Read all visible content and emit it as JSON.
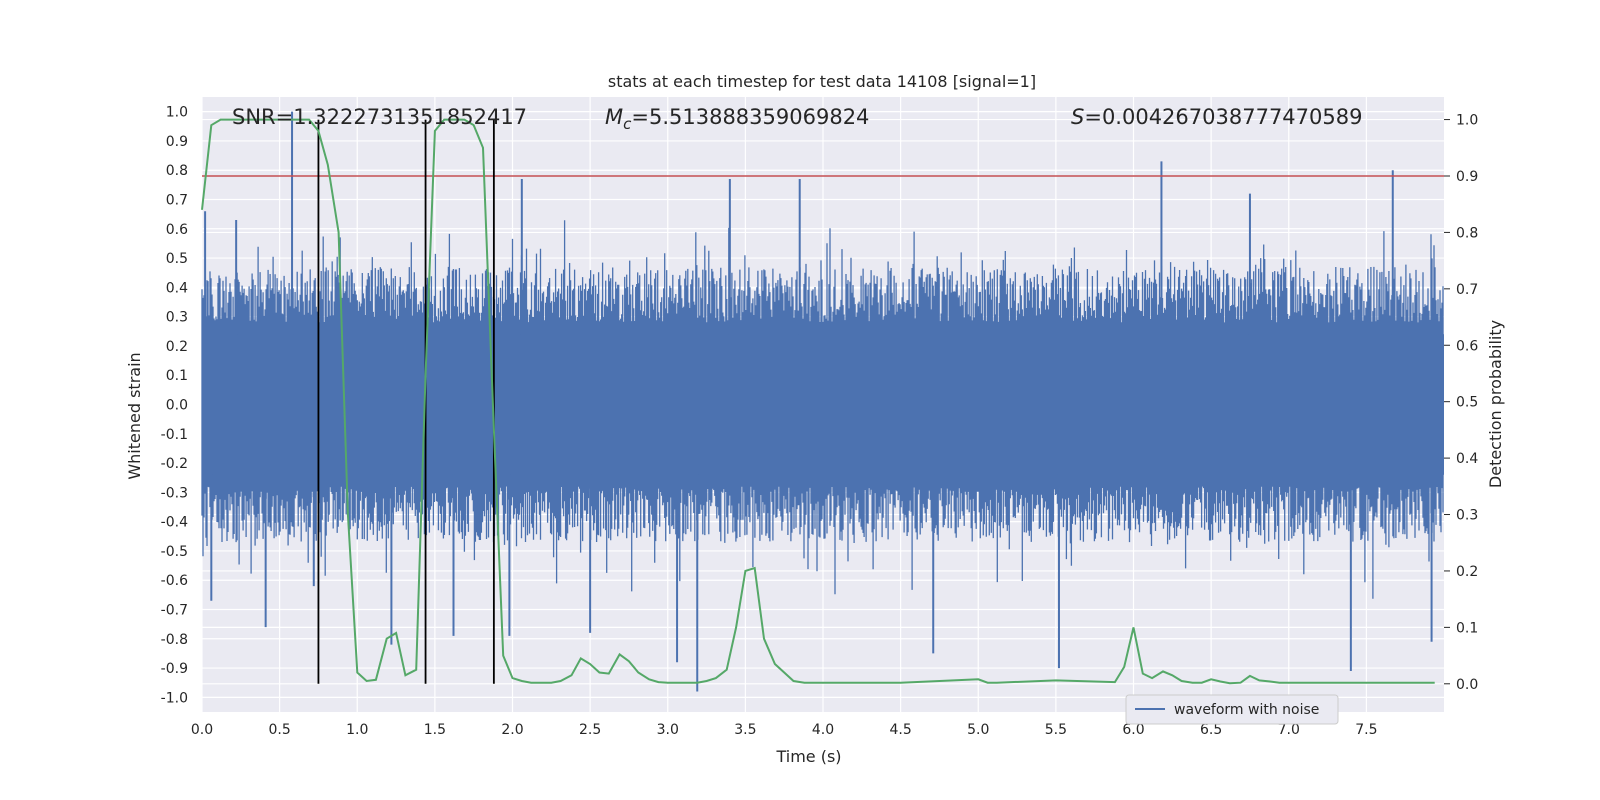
{
  "chart_data": {
    "type": "line",
    "title": "stats at each timestep for test data 14108 [signal=1]",
    "xlabel": "Time (s)",
    "ylabel_left": "Whitened strain",
    "ylabel_right": "Detection probability",
    "xlim": [
      0.0,
      8.0
    ],
    "ylim_left": [
      -1.05,
      1.05
    ],
    "ylim_right": [
      -0.05,
      1.04
    ],
    "grid": true,
    "x_ticks": [
      "0.0",
      "0.5",
      "1.0",
      "1.5",
      "2.0",
      "2.5",
      "3.0",
      "3.5",
      "4.0",
      "4.5",
      "5.0",
      "5.5",
      "6.0",
      "6.5",
      "7.0",
      "7.5"
    ],
    "x_tick_values": [
      0.0,
      0.5,
      1.0,
      1.5,
      2.0,
      2.5,
      3.0,
      3.5,
      4.0,
      4.5,
      5.0,
      5.5,
      6.0,
      6.5,
      7.0,
      7.5
    ],
    "y_left_ticks": [
      "1.0",
      "0.9",
      "0.8",
      "0.7",
      "0.6",
      "0.5",
      "0.4",
      "0.3",
      "0.2",
      "0.1",
      "0.0",
      "-0.1",
      "-0.2",
      "-0.3",
      "-0.4",
      "-0.5",
      "-0.6",
      "-0.7",
      "-0.8",
      "-0.9",
      "-1.0"
    ],
    "y_left_tick_values": [
      1.0,
      0.9,
      0.8,
      0.7,
      0.6,
      0.5,
      0.4,
      0.3,
      0.2,
      0.1,
      0.0,
      -0.1,
      -0.2,
      -0.3,
      -0.4,
      -0.5,
      -0.6,
      -0.7,
      -0.8,
      -0.9,
      -1.0
    ],
    "y_right_ticks": [
      "1.0",
      "0.9",
      "0.8",
      "0.7",
      "0.6",
      "0.5",
      "0.4",
      "0.3",
      "0.2",
      "0.1",
      "0.0"
    ],
    "y_right_tick_values": [
      1.0,
      0.9,
      0.8,
      0.7,
      0.6,
      0.5,
      0.4,
      0.3,
      0.2,
      0.1,
      0.0
    ],
    "annotations": {
      "snr": "SNR=1.3222731351852417",
      "mc_symbol": "M",
      "mc_sub": "c",
      "mc_value": "=5.513888359069824",
      "s_symbol": "S",
      "s_value": "=0.004267038777470589"
    },
    "threshold": {
      "value": 0.9,
      "axis": "right",
      "color": "#c44e52"
    },
    "event_lines": {
      "x": [
        0.75,
        1.44,
        1.88
      ],
      "color": "#000000"
    },
    "waveform": {
      "name": "waveform with noise",
      "color": "#4c72b0",
      "typical_max": 0.47,
      "typical_min": -0.47,
      "peaks": [
        {
          "x": 0.02,
          "y": 0.66
        },
        {
          "x": 0.06,
          "y": -0.67
        },
        {
          "x": 0.22,
          "y": 0.63
        },
        {
          "x": 0.41,
          "y": -0.76
        },
        {
          "x": 0.58,
          "y": 1.0
        },
        {
          "x": 0.72,
          "y": -0.62
        },
        {
          "x": 1.22,
          "y": -0.82
        },
        {
          "x": 1.62,
          "y": -0.79
        },
        {
          "x": 1.98,
          "y": -0.79
        },
        {
          "x": 2.06,
          "y": 0.77
        },
        {
          "x": 2.5,
          "y": -0.78
        },
        {
          "x": 3.06,
          "y": -0.88
        },
        {
          "x": 3.19,
          "y": -0.98
        },
        {
          "x": 3.4,
          "y": 0.77
        },
        {
          "x": 3.85,
          "y": 0.77
        },
        {
          "x": 4.71,
          "y": -0.85
        },
        {
          "x": 5.52,
          "y": -0.9
        },
        {
          "x": 6.18,
          "y": 0.83
        },
        {
          "x": 6.75,
          "y": 0.72
        },
        {
          "x": 7.4,
          "y": -0.91
        },
        {
          "x": 7.67,
          "y": 0.8
        },
        {
          "x": 7.92,
          "y": -0.81
        }
      ]
    },
    "detection_probability": {
      "color": "#55a868",
      "x": [
        0.0,
        0.06,
        0.12,
        0.19,
        0.25,
        0.31,
        0.38,
        0.44,
        0.5,
        0.56,
        0.62,
        0.69,
        0.75,
        0.81,
        0.88,
        0.94,
        1.0,
        1.06,
        1.12,
        1.19,
        1.25,
        1.31,
        1.38,
        1.44,
        1.5,
        1.56,
        1.62,
        1.69,
        1.75,
        1.81,
        1.88,
        1.94,
        2.0,
        2.06,
        2.12,
        2.19,
        2.25,
        2.31,
        2.38,
        2.44,
        2.5,
        2.56,
        2.62,
        2.69,
        2.75,
        2.81,
        2.88,
        2.94,
        3.0,
        3.06,
        3.12,
        3.19,
        3.25,
        3.31,
        3.38,
        3.44,
        3.5,
        3.56,
        3.62,
        3.69,
        3.75,
        3.81,
        3.88,
        3.94,
        4.0,
        4.06,
        4.12,
        4.5,
        5.0,
        5.06,
        5.12,
        5.5,
        5.88,
        5.94,
        6.0,
        6.06,
        6.12,
        6.19,
        6.25,
        6.31,
        6.38,
        6.44,
        6.5,
        6.56,
        6.62,
        6.69,
        6.75,
        6.81,
        6.88,
        6.94,
        7.0,
        7.5,
        7.94
      ],
      "y": [
        0.84,
        0.99,
        1.0,
        1.0,
        1.0,
        1.0,
        1.0,
        1.0,
        1.0,
        1.0,
        1.0,
        1.0,
        0.98,
        0.92,
        0.8,
        0.3,
        0.02,
        0.005,
        0.007,
        0.08,
        0.09,
        0.015,
        0.025,
        0.55,
        0.98,
        1.0,
        1.0,
        1.0,
        0.99,
        0.95,
        0.45,
        0.05,
        0.01,
        0.005,
        0.002,
        0.002,
        0.002,
        0.005,
        0.015,
        0.045,
        0.035,
        0.02,
        0.018,
        0.052,
        0.04,
        0.02,
        0.008,
        0.003,
        0.002,
        0.002,
        0.002,
        0.002,
        0.005,
        0.01,
        0.025,
        0.1,
        0.2,
        0.205,
        0.08,
        0.035,
        0.02,
        0.005,
        0.002,
        0.002,
        0.002,
        0.002,
        0.002,
        0.002,
        0.008,
        0.002,
        0.002,
        0.006,
        0.003,
        0.03,
        0.1,
        0.018,
        0.01,
        0.022,
        0.015,
        0.005,
        0.002,
        0.002,
        0.008,
        0.004,
        0.001,
        0.002,
        0.014,
        0.006,
        0.004,
        0.002,
        0.002,
        0.002,
        0.002
      ]
    },
    "legend": {
      "entries": [
        "waveform with noise"
      ],
      "position": "lower-right"
    }
  }
}
